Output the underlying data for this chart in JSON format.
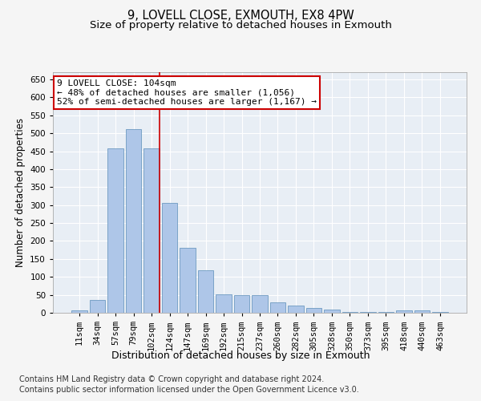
{
  "title_line1": "9, LOVELL CLOSE, EXMOUTH, EX8 4PW",
  "title_line2": "Size of property relative to detached houses in Exmouth",
  "xlabel": "Distribution of detached houses by size in Exmouth",
  "ylabel": "Number of detached properties",
  "categories": [
    "11sqm",
    "34sqm",
    "57sqm",
    "79sqm",
    "102sqm",
    "124sqm",
    "147sqm",
    "169sqm",
    "192sqm",
    "215sqm",
    "237sqm",
    "260sqm",
    "282sqm",
    "305sqm",
    "328sqm",
    "350sqm",
    "373sqm",
    "395sqm",
    "418sqm",
    "440sqm",
    "463sqm"
  ],
  "values": [
    7,
    36,
    457,
    512,
    457,
    305,
    180,
    118,
    52,
    50,
    50,
    28,
    20,
    13,
    8,
    3,
    3,
    3,
    6,
    6,
    3
  ],
  "bar_color": "#aec6e8",
  "bar_edge_color": "#5b8db8",
  "ref_line_index": 4,
  "ref_line_color": "#cc0000",
  "annotation_line1": "9 LOVELL CLOSE: 104sqm",
  "annotation_line2": "← 48% of detached houses are smaller (1,056)",
  "annotation_line3": "52% of semi-detached houses are larger (1,167) →",
  "annotation_box_color": "#ffffff",
  "annotation_box_edge": "#cc0000",
  "ylim": [
    0,
    670
  ],
  "yticks": [
    0,
    50,
    100,
    150,
    200,
    250,
    300,
    350,
    400,
    450,
    500,
    550,
    600,
    650
  ],
  "plot_bg_color": "#e8eef5",
  "fig_bg_color": "#f5f5f5",
  "grid_color": "#ffffff",
  "footer_line1": "Contains HM Land Registry data © Crown copyright and database right 2024.",
  "footer_line2": "Contains public sector information licensed under the Open Government Licence v3.0.",
  "title_fontsize": 10.5,
  "subtitle_fontsize": 9.5,
  "ylabel_fontsize": 8.5,
  "xlabel_fontsize": 9,
  "tick_fontsize": 7.5,
  "annotation_fontsize": 8,
  "footer_fontsize": 7
}
